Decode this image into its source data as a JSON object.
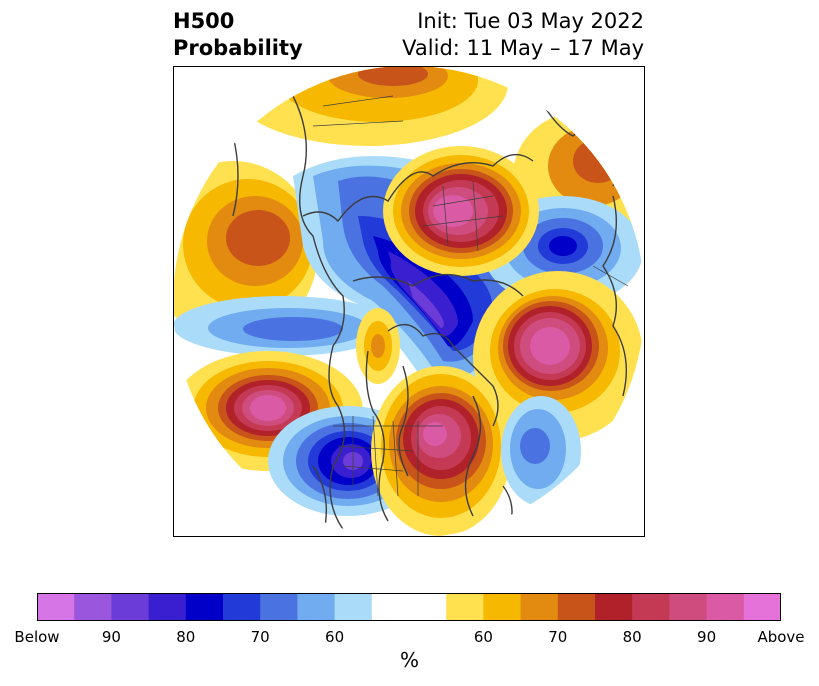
{
  "header": {
    "title_line1": "H500",
    "title_line2": "Probability",
    "init": "Init: Tue 03 May 2022",
    "valid": "Valid: 11 May – 17 May"
  },
  "map": {
    "projection": "north-polar-stereographic",
    "features": [
      "Above-normal 500mb height probability centers",
      "Below-normal 500mb height probability centers"
    ]
  },
  "colorbar": {
    "unit": "%",
    "colors": [
      "#d575e6",
      "#9b56de",
      "#6c3cd8",
      "#3a1fd1",
      "#0000c8",
      "#213ad8",
      "#4a72e0",
      "#70acef",
      "#aadcf9",
      "#ffffff",
      "#ffe14f",
      "#f6b800",
      "#e38a10",
      "#c8541a",
      "#b0212a",
      "#c43a54",
      "#cf4c7e",
      "#da5aa6",
      "#e472d8"
    ],
    "tick_labels": [
      "Below",
      "90",
      "80",
      "70",
      "60",
      "60",
      "70",
      "80",
      "90",
      "Above"
    ]
  }
}
